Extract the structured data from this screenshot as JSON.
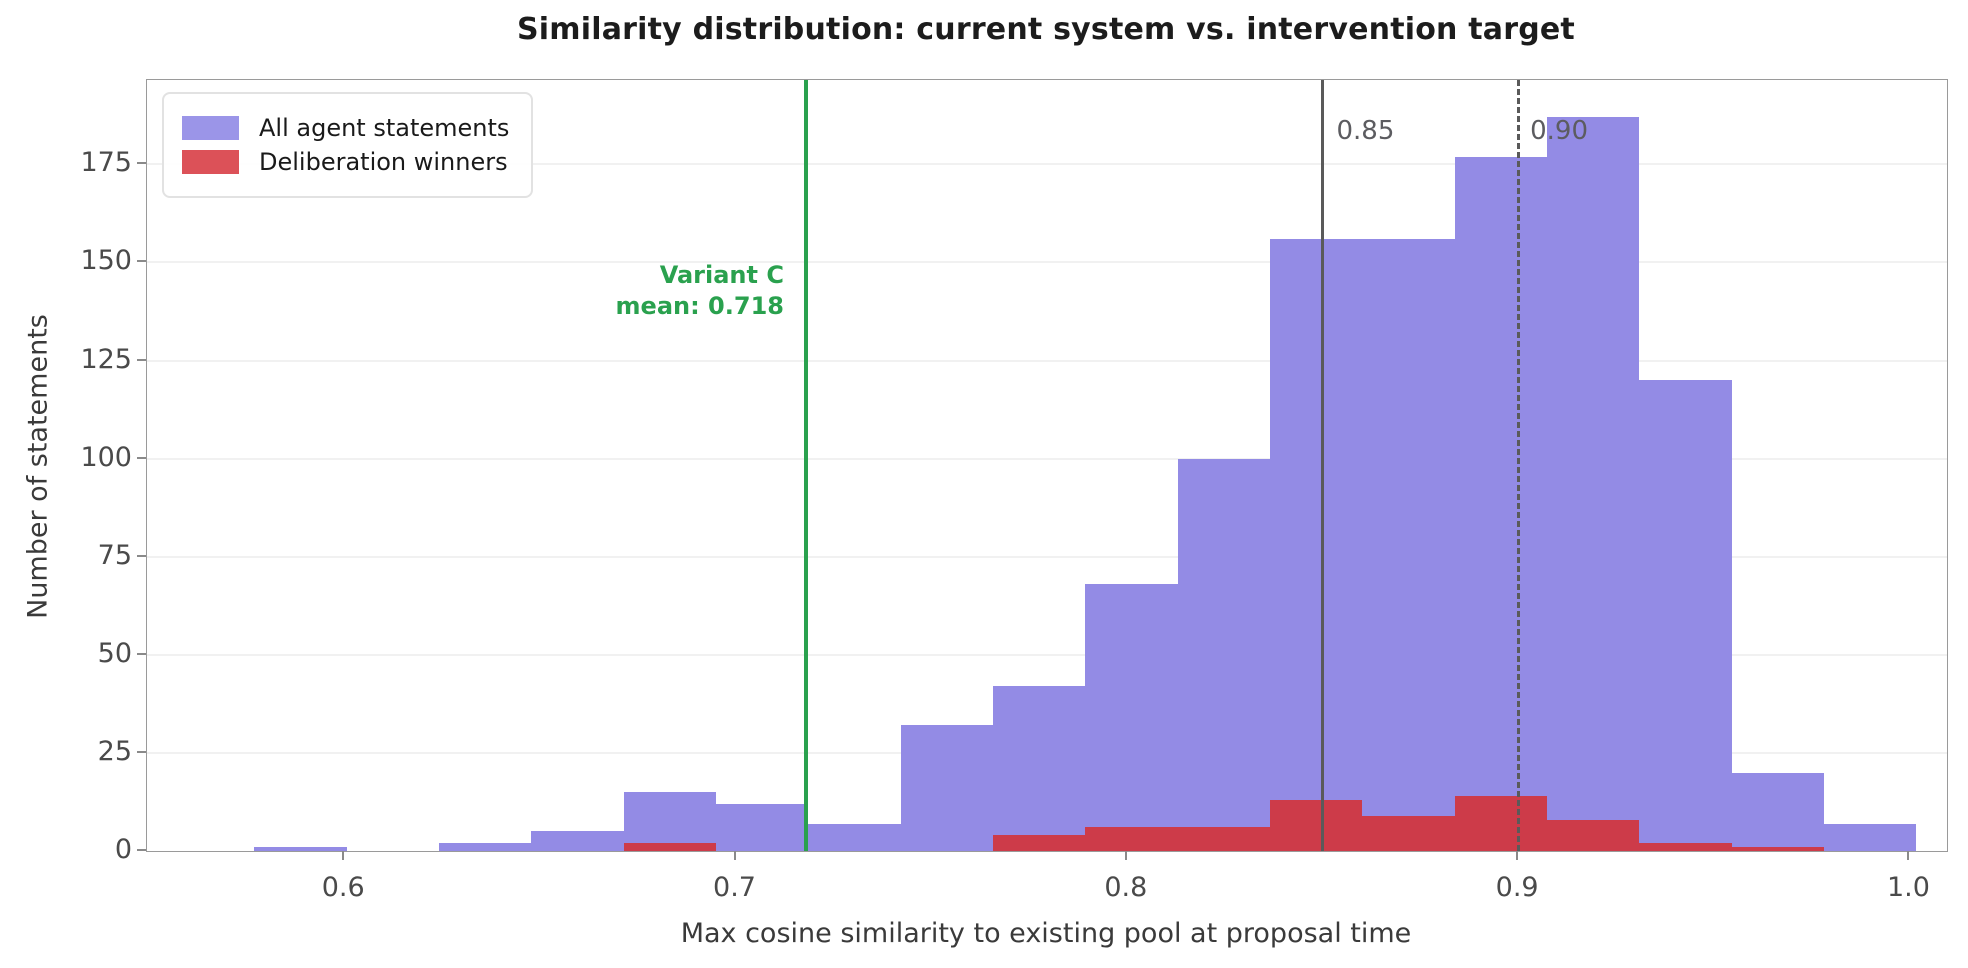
{
  "title": "Similarity distribution: current system vs. intervention target",
  "axes": {
    "x_label": "Max cosine similarity to existing pool at proposal time",
    "y_label": "Number of statements"
  },
  "legend": {
    "items": [
      {
        "label": "All agent statements",
        "color": "#9b95e8"
      },
      {
        "label": "Deliberation winners",
        "color": "#dc5158"
      }
    ]
  },
  "annotations": {
    "variant_line": {
      "line1": "Variant C",
      "line2": "mean: 0.718",
      "value": 0.718,
      "color": "#2aa14e"
    },
    "solid_line": {
      "label": "0.85",
      "value": 0.85,
      "color": "#5a5a5a"
    },
    "dashed_line": {
      "label": "0.90",
      "value": 0.9,
      "color": "#5a5a5a"
    }
  },
  "chart_data": {
    "type": "bar",
    "subtype": "overlaid-histogram",
    "title": "Similarity distribution: current system vs. intervention target",
    "xlabel": "Max cosine similarity to existing pool at proposal time",
    "ylabel": "Number of statements",
    "bin_start": 0.577,
    "bin_width": 0.0236,
    "bin_edges": [
      0.577,
      0.6006,
      0.6242,
      0.6478,
      0.6714,
      0.695,
      0.7186,
      0.7422,
      0.7658,
      0.7894,
      0.813,
      0.8366,
      0.8602,
      0.8838,
      0.9074,
      0.931,
      0.9546,
      0.9782,
      1.0018
    ],
    "series": [
      {
        "name": "All agent statements",
        "color": "#938be5",
        "values": [
          1,
          0,
          2,
          5,
          15,
          12,
          7,
          32,
          42,
          68,
          100,
          156,
          156,
          177,
          187,
          120,
          20,
          7
        ]
      },
      {
        "name": "Deliberation winners",
        "color": "#cd3b49",
        "values": [
          0,
          0,
          0,
          0,
          2,
          0,
          0,
          0,
          4,
          6,
          6,
          13,
          9,
          14,
          8,
          2,
          1,
          0
        ]
      }
    ],
    "vlines": [
      {
        "value": 0.718,
        "style": "solid",
        "color": "#2aa14e",
        "label": "Variant C mean: 0.718"
      },
      {
        "value": 0.85,
        "style": "solid",
        "color": "#5a5a5a",
        "label": "0.85"
      },
      {
        "value": 0.9,
        "style": "dashed",
        "color": "#5a5a5a",
        "label": "0.90"
      }
    ],
    "xlim": [
      0.5496,
      1.0096
    ],
    "ylim": [
      0,
      196.5
    ],
    "x_ticks": [
      {
        "v": 0.6,
        "label": "0.6"
      },
      {
        "v": 0.7,
        "label": "0.7"
      },
      {
        "v": 0.8,
        "label": "0.8"
      },
      {
        "v": 0.9,
        "label": "0.9"
      },
      {
        "v": 1.0,
        "label": "1.0"
      }
    ],
    "y_ticks": [
      {
        "v": 0,
        "label": "0"
      },
      {
        "v": 25,
        "label": "25"
      },
      {
        "v": 50,
        "label": "50"
      },
      {
        "v": 75,
        "label": "75"
      },
      {
        "v": 100,
        "label": "100"
      },
      {
        "v": 125,
        "label": "125"
      },
      {
        "v": 150,
        "label": "150"
      },
      {
        "v": 175,
        "label": "175"
      }
    ],
    "grid": "horizontal-only",
    "legend_position": "upper-left"
  }
}
